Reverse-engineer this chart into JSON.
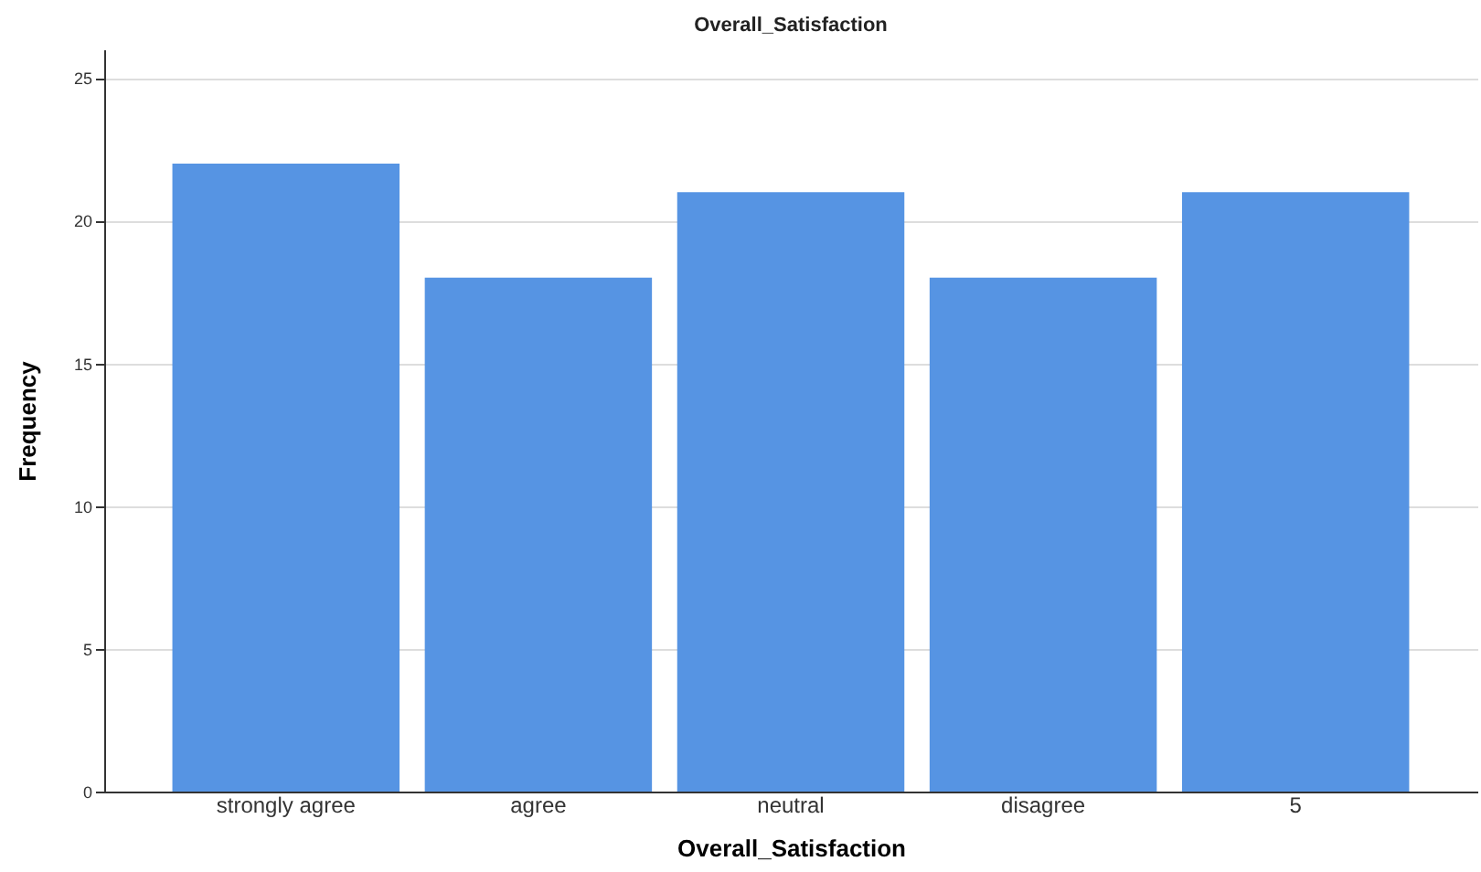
{
  "chart_data": {
    "type": "bar",
    "title": "Overall_Satisfaction",
    "xlabel": "Overall_Satisfaction",
    "ylabel": "Frequency",
    "categories": [
      "strongly agree",
      "agree",
      "neutral",
      "disagree",
      "5"
    ],
    "values": [
      22,
      18,
      21,
      18,
      21
    ],
    "color": "#5694e3",
    "ylim": [
      0,
      26
    ],
    "yticks": [
      0,
      5,
      10,
      15,
      20,
      25
    ],
    "grid": "y"
  }
}
